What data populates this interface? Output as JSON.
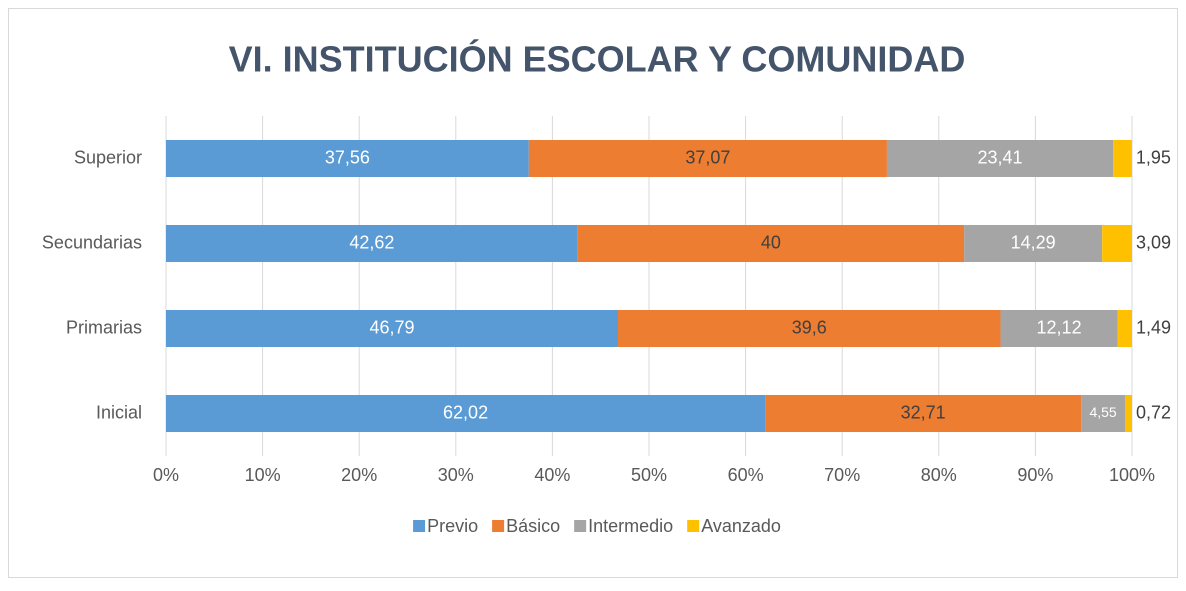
{
  "chart_data": {
    "type": "stacked_bar_horizontal",
    "title": "VI. INSTITUCIÓN ESCOLAR Y COMUNIDAD",
    "categories": [
      "Superior",
      "Secundarias",
      "Primarias",
      "Inicial"
    ],
    "series": [
      {
        "name": "Previo",
        "color": "#5b9bd5",
        "label_color": "#ffffff",
        "values": [
          37.56,
          42.62,
          46.79,
          62.02
        ],
        "value_labels": [
          "37,56",
          "42,62",
          "46,79",
          "62,02"
        ]
      },
      {
        "name": "Básico",
        "color": "#ed7d31",
        "label_color": "#404040",
        "values": [
          37.07,
          40,
          39.6,
          32.71
        ],
        "value_labels": [
          "37,07",
          "40",
          "39,6",
          "32,71"
        ]
      },
      {
        "name": "Intermedio",
        "color": "#a5a5a5",
        "label_color": "#ffffff",
        "values": [
          23.41,
          14.29,
          12.12,
          4.55
        ],
        "value_labels": [
          "23,41",
          "14,29",
          "12,12",
          "4,55"
        ]
      },
      {
        "name": "Avanzado",
        "color": "#ffc000",
        "label_color": "#404040",
        "values": [
          1.95,
          3.09,
          1.49,
          0.72
        ],
        "value_labels": [
          "1,95",
          "3,09",
          "1,49",
          "0,72"
        ]
      }
    ],
    "xlim": [
      0,
      100
    ],
    "xticks": [
      {
        "value": 0,
        "label": "0%"
      },
      {
        "value": 10,
        "label": "10%"
      },
      {
        "value": 20,
        "label": "20%"
      },
      {
        "value": 30,
        "label": "30%"
      },
      {
        "value": 40,
        "label": "40%"
      },
      {
        "value": 50,
        "label": "50%"
      },
      {
        "value": 60,
        "label": "60%"
      },
      {
        "value": 70,
        "label": "70%"
      },
      {
        "value": 80,
        "label": "80%"
      },
      {
        "value": 90,
        "label": "90%"
      },
      {
        "value": 100,
        "label": "100%"
      }
    ],
    "grid": true,
    "legend": "bottom"
  }
}
